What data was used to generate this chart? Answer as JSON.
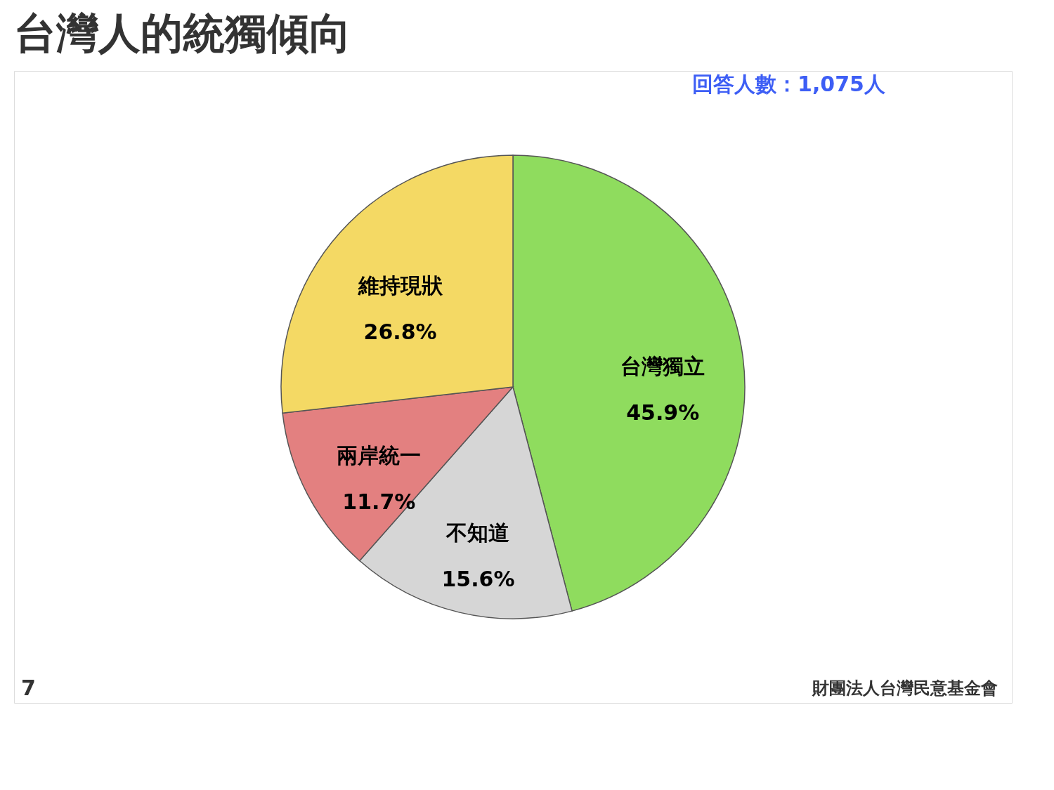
{
  "chart_data": {
    "type": "pie",
    "title": "台灣人的統獨傾向",
    "categories": [
      "台灣獨立",
      "不知道",
      "兩岸統一",
      "維持現狀"
    ],
    "values": [
      45.9,
      15.6,
      11.7,
      26.8
    ],
    "value_labels": [
      "45.9%",
      "15.6%",
      "11.7%",
      "26.8%"
    ],
    "colors": [
      "#8fdc5e",
      "#d6d6d6",
      "#e38080",
      "#f4d964"
    ],
    "annotations": [
      "回答人數：1,075人",
      "7",
      "財團法人台灣民意基金會"
    ],
    "legend": false
  }
}
